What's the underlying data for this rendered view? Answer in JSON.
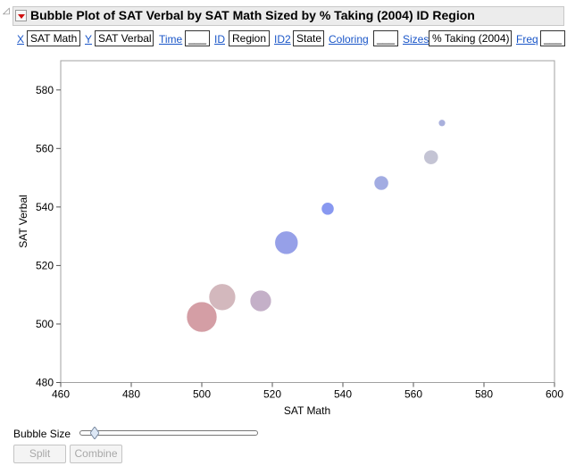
{
  "header": {
    "title": "Bubble Plot of SAT Verbal by SAT Math Sized by % Taking (2004) ID Region"
  },
  "roles": [
    {
      "label": "X",
      "value": "SAT Math"
    },
    {
      "label": "Y",
      "value": "SAT Verbal"
    },
    {
      "label": "Time",
      "value": "___"
    },
    {
      "label": "ID",
      "value": "Region"
    },
    {
      "label": "ID2",
      "value": "State"
    },
    {
      "label": "Coloring",
      "value": "___"
    },
    {
      "label": "Sizes",
      "value": "% Taking (2004)"
    },
    {
      "label": "Freq",
      "value": "___"
    }
  ],
  "controls": {
    "bubble_size_label": "Bubble Size",
    "bubble_size_level": 0.08,
    "split_label": "Split",
    "combine_label": "Combine"
  },
  "chart_data": {
    "type": "scatter",
    "xlabel": "SAT Math",
    "ylabel": "SAT Verbal",
    "xlim": [
      460,
      600
    ],
    "ylim": [
      480,
      590
    ],
    "xticks": [
      "460",
      "480",
      "500",
      "520",
      "540",
      "560",
      "580",
      "600"
    ],
    "yticks": [
      "480",
      "500",
      "520",
      "540",
      "560",
      "580"
    ],
    "grid": false,
    "points": [
      {
        "x": 500,
        "y": 502.4,
        "size": 75,
        "color": "#d49ea5"
      },
      {
        "x": 505.8,
        "y": 509.2,
        "size": 58,
        "color": "#d3b8bd"
      },
      {
        "x": 516.7,
        "y": 507.9,
        "size": 37,
        "color": "#c4b0c8"
      },
      {
        "x": 524,
        "y": 527.8,
        "size": 44,
        "color": "#96a0e8"
      },
      {
        "x": 535.7,
        "y": 539.4,
        "size": 13,
        "color": "#8898f0"
      },
      {
        "x": 550.9,
        "y": 548.2,
        "size": 17,
        "color": "#a2ace2"
      },
      {
        "x": 565,
        "y": 557,
        "size": 17,
        "color": "#c4c4d4"
      },
      {
        "x": 568.1,
        "y": 568.7,
        "size": 4,
        "color": "#a9b0dc"
      }
    ]
  }
}
